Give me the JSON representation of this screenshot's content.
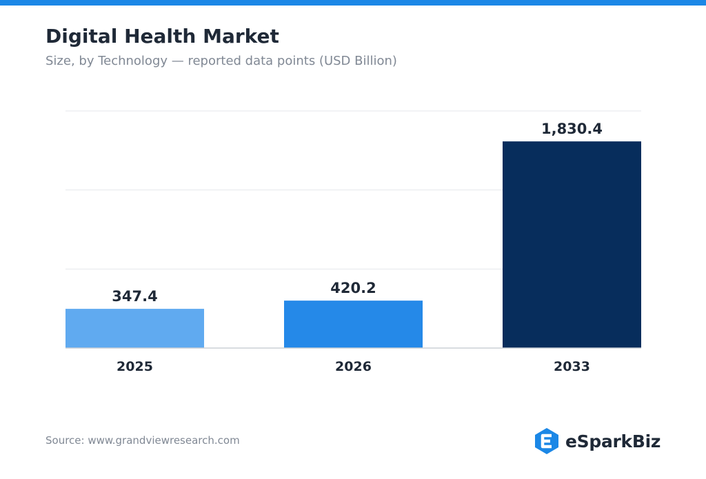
{
  "header": {
    "title": "Digital Health Market",
    "subtitle": "Size, by Technology — reported data points (USD Billion)"
  },
  "footer": {
    "source": "Source: www.grandviewresearch.com",
    "brand": "eSparkBiz"
  },
  "colors": {
    "accent": "#1b87e6",
    "bars": [
      "#60aaf0",
      "#2589e8",
      "#072d5c"
    ],
    "grid": "#e5e7eb",
    "axis": "#cbd0d6",
    "logo": "#1b87e6"
  },
  "chart_data": {
    "type": "bar",
    "title": "Digital Health Market",
    "subtitle": "Size, by Technology — reported data points (USD Billion)",
    "categories": [
      "2025",
      "2026",
      "2033"
    ],
    "values": [
      347.4,
      420.2,
      1830.4
    ],
    "value_labels": [
      "347.4",
      "420.2",
      "1,830.4"
    ],
    "xlabel": "",
    "ylabel": "",
    "ylim": [
      0,
      2100
    ],
    "grid": true,
    "legend": "none"
  }
}
